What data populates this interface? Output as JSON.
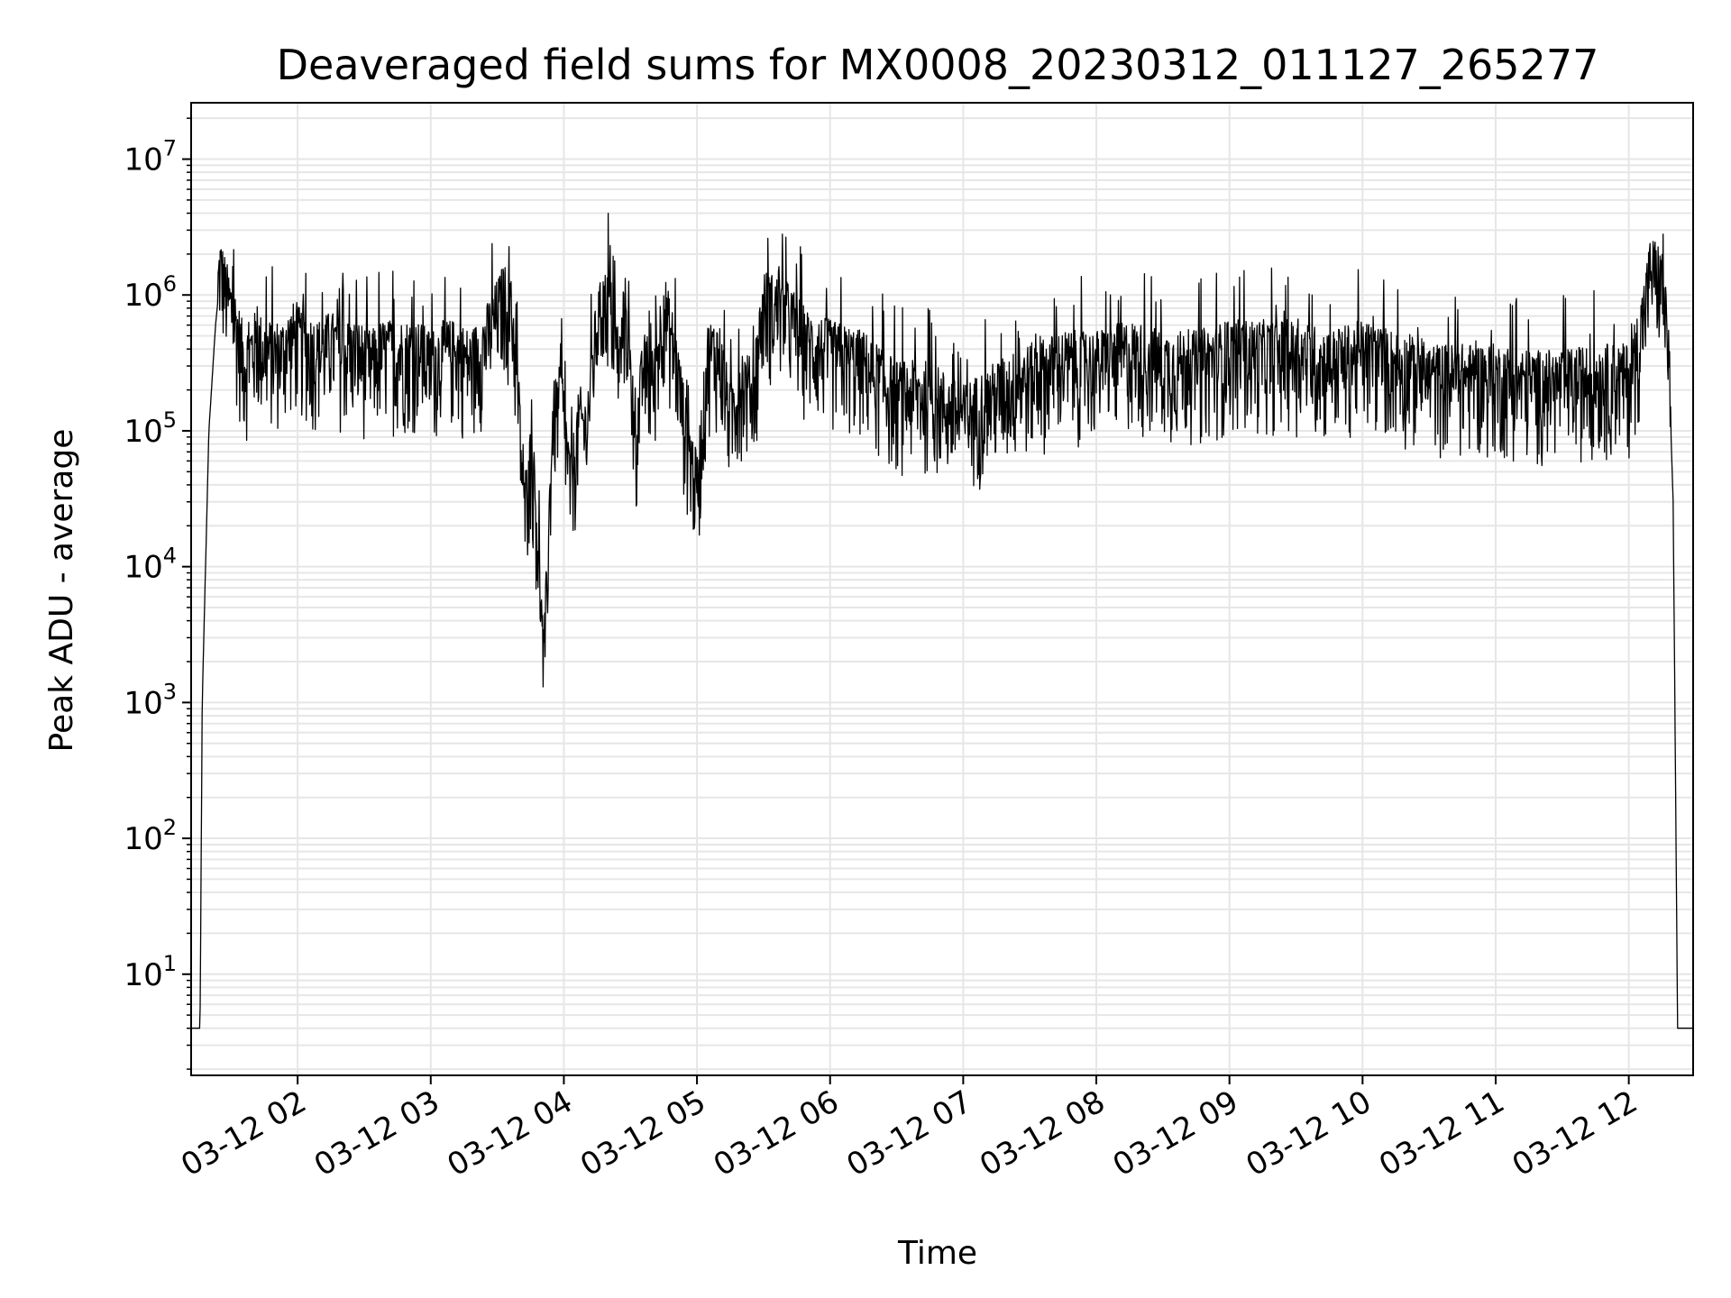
{
  "chart_data": {
    "type": "line",
    "title": "Deaveraged field sums for MX0008_20230312_011127_265277",
    "xlabel": "Time",
    "ylabel": "Peak ADU - average",
    "yscale": "log",
    "ylim": [
      1.8,
      26000000
    ],
    "xlim": [
      "2023-03-12 01:12",
      "2023-03-12 12:29"
    ],
    "x_ticks": [
      {
        "x": "2023-03-12 02:00",
        "label": "03-12 02"
      },
      {
        "x": "2023-03-12 03:00",
        "label": "03-12 03"
      },
      {
        "x": "2023-03-12 04:00",
        "label": "03-12 04"
      },
      {
        "x": "2023-03-12 05:00",
        "label": "03-12 05"
      },
      {
        "x": "2023-03-12 06:00",
        "label": "03-12 06"
      },
      {
        "x": "2023-03-12 07:00",
        "label": "03-12 07"
      },
      {
        "x": "2023-03-12 08:00",
        "label": "03-12 08"
      },
      {
        "x": "2023-03-12 09:00",
        "label": "03-12 09"
      },
      {
        "x": "2023-03-12 10:00",
        "label": "03-12 10"
      },
      {
        "x": "2023-03-12 11:00",
        "label": "03-12 11"
      },
      {
        "x": "2023-03-12 12:00",
        "label": "03-12 12"
      }
    ],
    "y_ticks": [
      {
        "value": 10,
        "base": "10",
        "exp": "1"
      },
      {
        "value": 100,
        "base": "10",
        "exp": "2"
      },
      {
        "value": 1000,
        "base": "10",
        "exp": "3"
      },
      {
        "value": 10000,
        "base": "10",
        "exp": "4"
      },
      {
        "value": 100000,
        "base": "10",
        "exp": "5"
      },
      {
        "value": 1000000,
        "base": "10",
        "exp": "6"
      },
      {
        "value": 10000000,
        "base": "10",
        "exp": "7"
      }
    ],
    "grid": true,
    "line_color": "#000000",
    "series": [
      {
        "name": "",
        "x": [
          "2023-03-12 01:12",
          "2023-03-12 01:16",
          "2023-03-12 01:17",
          "2023-03-12 01:20",
          "2023-03-12 01:23",
          "2023-03-12 01:25",
          "2023-03-12 01:28",
          "2023-03-12 01:32",
          "2023-03-12 01:36",
          "2023-03-12 01:41",
          "2023-03-12 01:47",
          "2023-03-12 01:53",
          "2023-03-12 01:58",
          "2023-03-12 02:03",
          "2023-03-12 02:09",
          "2023-03-12 02:15",
          "2023-03-12 02:21",
          "2023-03-12 02:27",
          "2023-03-12 02:33",
          "2023-03-12 02:38",
          "2023-03-12 02:42",
          "2023-03-12 02:48",
          "2023-03-12 02:54",
          "2023-03-12 03:00",
          "2023-03-12 03:06",
          "2023-03-12 03:12",
          "2023-03-12 03:18",
          "2023-03-12 03:24",
          "2023-03-12 03:28",
          "2023-03-12 03:33",
          "2023-03-12 03:37",
          "2023-03-12 03:40",
          "2023-03-12 03:42",
          "2023-03-12 03:45",
          "2023-03-12 03:47",
          "2023-03-12 03:51",
          "2023-03-12 03:55",
          "2023-03-12 03:59",
          "2023-03-12 04:03",
          "2023-03-12 04:07",
          "2023-03-12 04:10",
          "2023-03-12 04:15",
          "2023-03-12 04:20",
          "2023-03-12 04:25",
          "2023-03-12 04:28",
          "2023-03-12 04:32",
          "2023-03-12 04:36",
          "2023-03-12 04:40",
          "2023-03-12 04:45",
          "2023-03-12 04:50",
          "2023-03-12 04:55",
          "2023-03-12 05:00",
          "2023-03-12 05:05",
          "2023-03-12 05:10",
          "2023-03-12 05:15",
          "2023-03-12 05:20",
          "2023-03-12 05:25",
          "2023-03-12 05:30",
          "2023-03-12 05:40",
          "2023-03-12 05:50",
          "2023-03-12 06:00",
          "2023-03-12 06:15",
          "2023-03-12 06:30",
          "2023-03-12 06:45",
          "2023-03-12 07:00",
          "2023-03-12 07:15",
          "2023-03-12 07:30",
          "2023-03-12 07:45",
          "2023-03-12 08:00",
          "2023-03-12 08:15",
          "2023-03-12 08:30",
          "2023-03-12 08:45",
          "2023-03-12 09:00",
          "2023-03-12 09:15",
          "2023-03-12 09:30",
          "2023-03-12 09:45",
          "2023-03-12 10:00",
          "2023-03-12 10:15",
          "2023-03-12 10:30",
          "2023-03-12 10:45",
          "2023-03-12 11:00",
          "2023-03-12 11:15",
          "2023-03-12 11:30",
          "2023-03-12 11:45",
          "2023-03-12 12:00",
          "2023-03-12 12:05",
          "2023-03-12 12:10",
          "2023-03-12 12:15",
          "2023-03-12 12:18",
          "2023-03-12 12:20",
          "2023-03-12 12:22",
          "2023-03-12 12:29"
        ],
        "y": [
          4,
          4,
          1000,
          100000,
          600000,
          1300000,
          800000,
          500000,
          250000,
          350000,
          300000,
          300000,
          400000,
          350000,
          300000,
          350000,
          300000,
          300000,
          250000,
          300000,
          300000,
          300000,
          300000,
          250000,
          300000,
          300000,
          250000,
          350000,
          500000,
          800000,
          500000,
          100000,
          20000,
          50000,
          30000,
          1500,
          100000,
          150000,
          30000,
          100000,
          80000,
          500000,
          800000,
          250000,
          700000,
          60000,
          250000,
          150000,
          700000,
          300000,
          80000,
          30000,
          300000,
          300000,
          100000,
          200000,
          150000,
          700000,
          600000,
          350000,
          300000,
          250000,
          150000,
          150000,
          100000,
          150000,
          200000,
          250000,
          250000,
          300000,
          250000,
          250000,
          300000,
          300000,
          300000,
          250000,
          300000,
          250000,
          200000,
          200000,
          200000,
          180000,
          180000,
          200000,
          200000,
          400000,
          1300000,
          1000000,
          300000,
          30000,
          4,
          4
        ]
      }
    ],
    "noise": {
      "band_low": 0.3,
      "band_high": 2.2,
      "spike_probability": 0.06
    }
  }
}
